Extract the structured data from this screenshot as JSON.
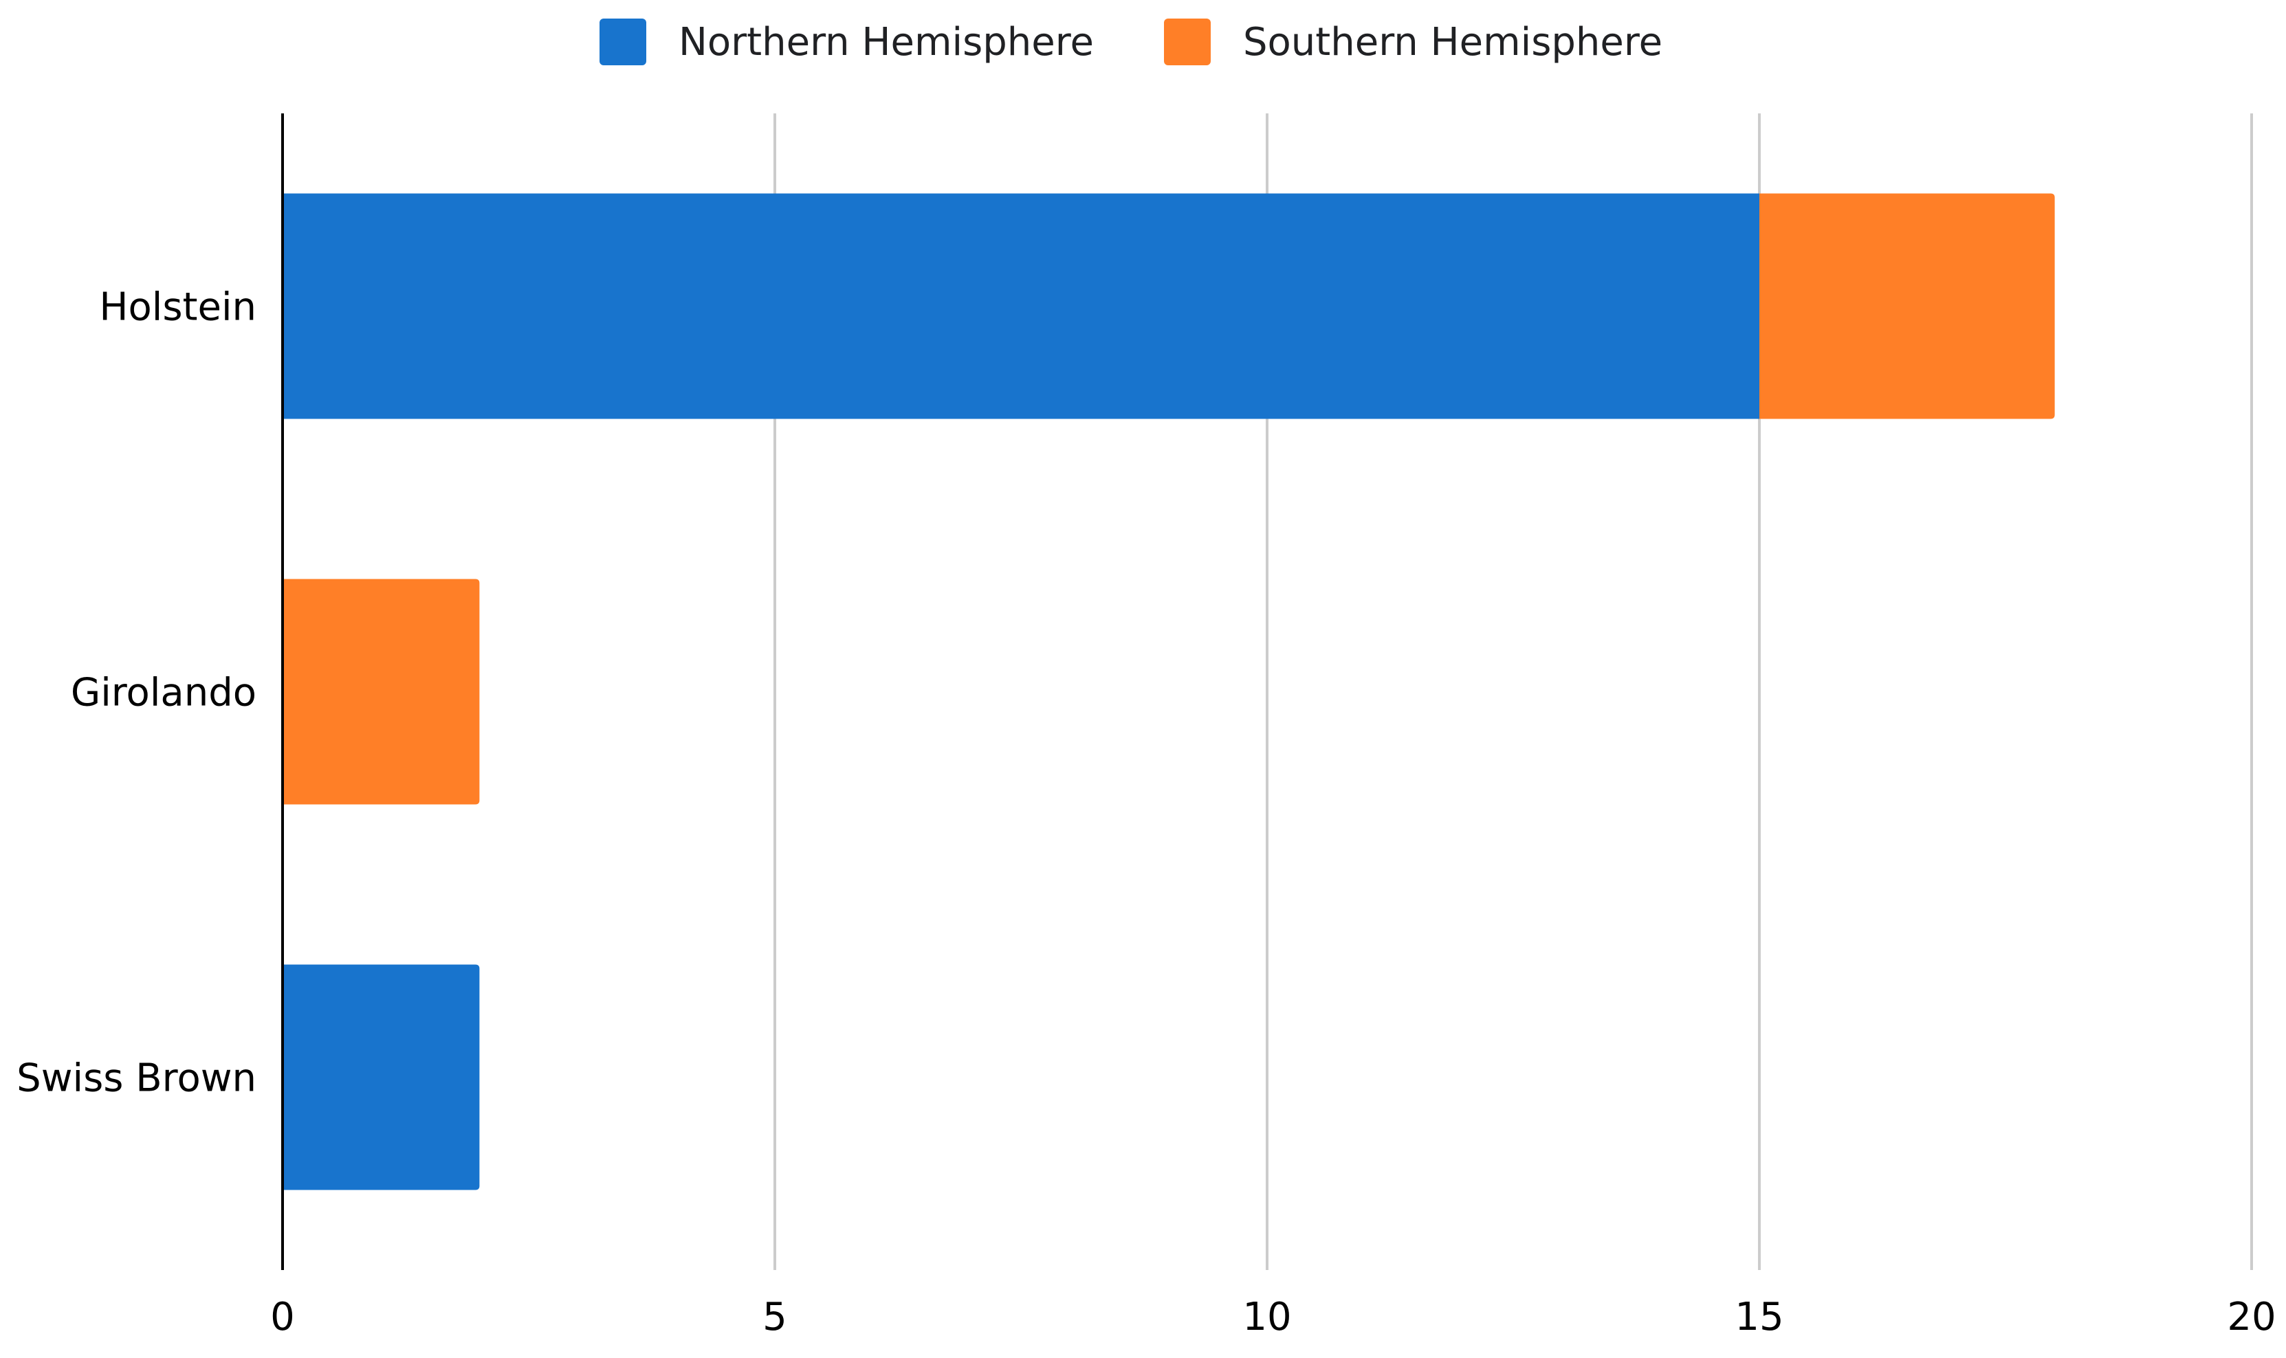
{
  "chart_data": {
    "type": "bar",
    "orientation": "horizontal",
    "stacked": true,
    "categories": [
      "Holstein",
      "Girolando",
      "Swiss Brown"
    ],
    "series": [
      {
        "name": "Northern Hemisphere",
        "values": [
          15,
          0,
          2
        ],
        "color": "#1874cd"
      },
      {
        "name": "Southern Hemisphere",
        "values": [
          3,
          2,
          0
        ],
        "color": "#ff7f27"
      }
    ],
    "xlim": [
      0,
      20
    ],
    "xticks": [
      0,
      5,
      10,
      15,
      20
    ],
    "title": "",
    "xlabel": "",
    "ylabel": "",
    "grid": "vertical",
    "legend_position": "top"
  }
}
